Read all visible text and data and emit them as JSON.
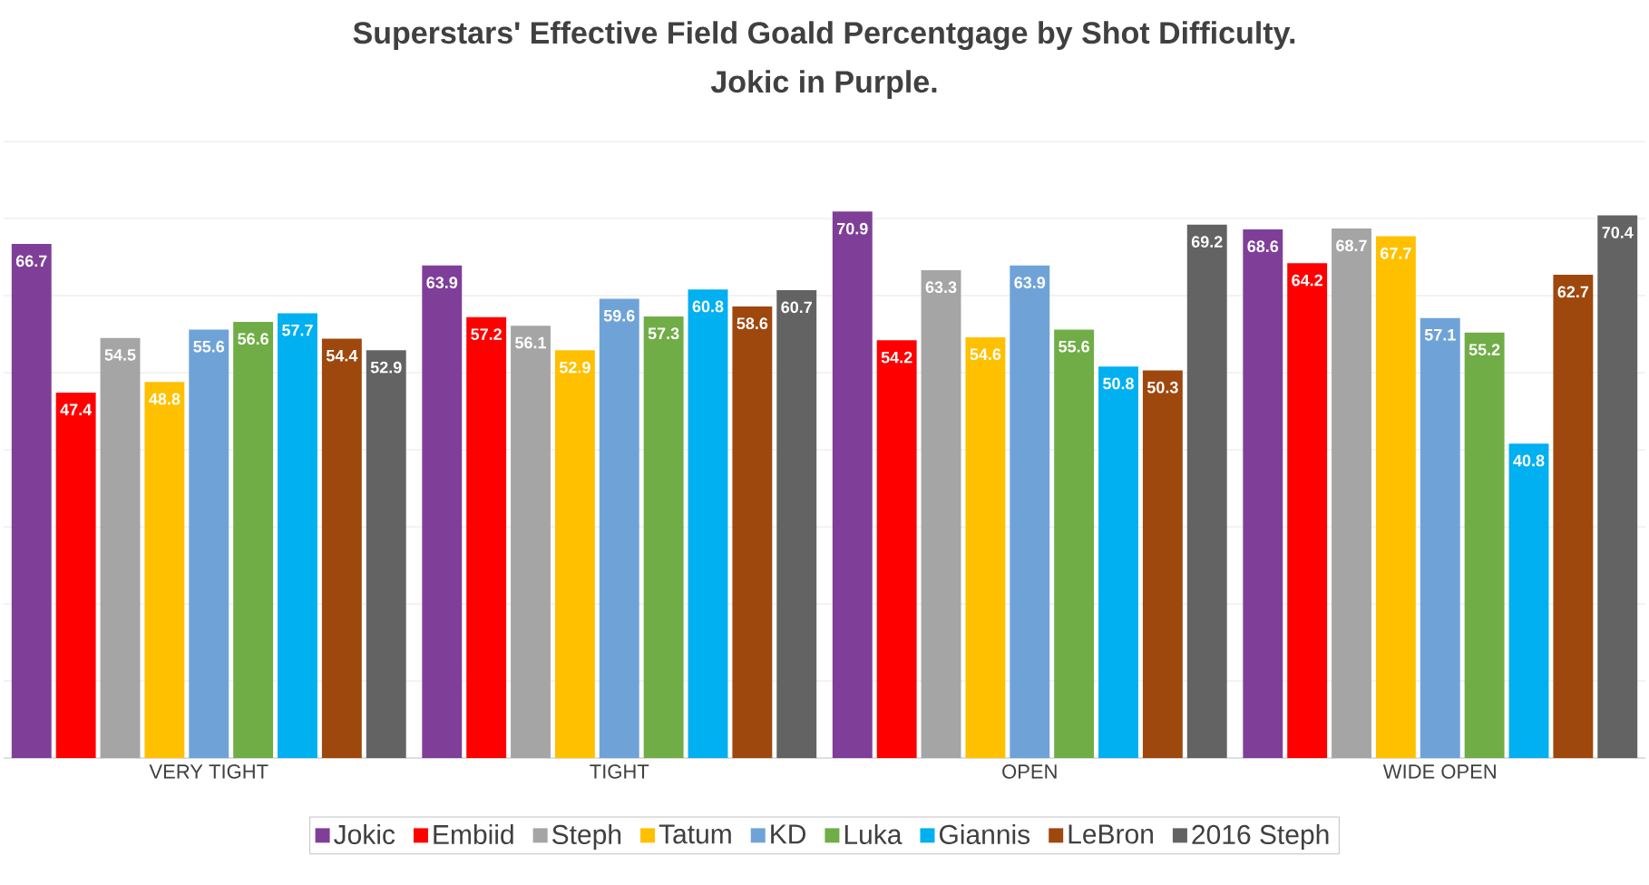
{
  "chart_data": {
    "type": "bar",
    "title": "Superstars' Effective Field Goald Percentgage by Shot Difficulty.",
    "subtitle": "Jokic  in Purple.",
    "categories": [
      "VERY TIGHT",
      "TIGHT",
      "OPEN",
      "WIDE OPEN"
    ],
    "series": [
      {
        "name": "Jokic",
        "color": "#7f3f98",
        "values": [
          66.7,
          63.9,
          70.9,
          68.6
        ]
      },
      {
        "name": "Embiid",
        "color": "#ff0000",
        "values": [
          47.4,
          57.2,
          54.2,
          64.2
        ]
      },
      {
        "name": "Steph",
        "color": "#a5a5a5",
        "values": [
          54.5,
          56.1,
          63.3,
          68.7
        ]
      },
      {
        "name": "Tatum",
        "color": "#ffc000",
        "values": [
          48.8,
          52.9,
          54.6,
          67.7
        ]
      },
      {
        "name": "KD",
        "color": "#6fa3d8",
        "values": [
          55.6,
          59.6,
          63.9,
          57.1
        ]
      },
      {
        "name": "Luka",
        "color": "#70ad47",
        "values": [
          56.6,
          57.3,
          55.6,
          55.2
        ]
      },
      {
        "name": "Giannis",
        "color": "#00b0f0",
        "values": [
          57.7,
          60.8,
          50.8,
          40.8
        ]
      },
      {
        "name": "LeBron",
        "color": "#9e480e",
        "values": [
          54.4,
          58.6,
          50.3,
          62.7
        ]
      },
      {
        "name": "2016 Steph",
        "color": "#636363",
        "values": [
          52.9,
          60.7,
          69.2,
          70.4
        ]
      }
    ],
    "ylim": [
      0,
      80
    ],
    "yticks": [
      {
        "value": 0,
        "label": null
      },
      {
        "value": 10,
        "label": null
      },
      {
        "value": 20,
        "label": null
      },
      {
        "value": 30,
        "label": null
      },
      {
        "value": 40,
        "label": null
      },
      {
        "value": 50,
        "label": null
      },
      {
        "value": 60,
        "label": null
      },
      {
        "value": 70,
        "label": null
      },
      {
        "value": 80,
        "label": null
      }
    ],
    "grid": "y",
    "legend": "bottom",
    "data_labels": true,
    "tick_labels": "x"
  }
}
